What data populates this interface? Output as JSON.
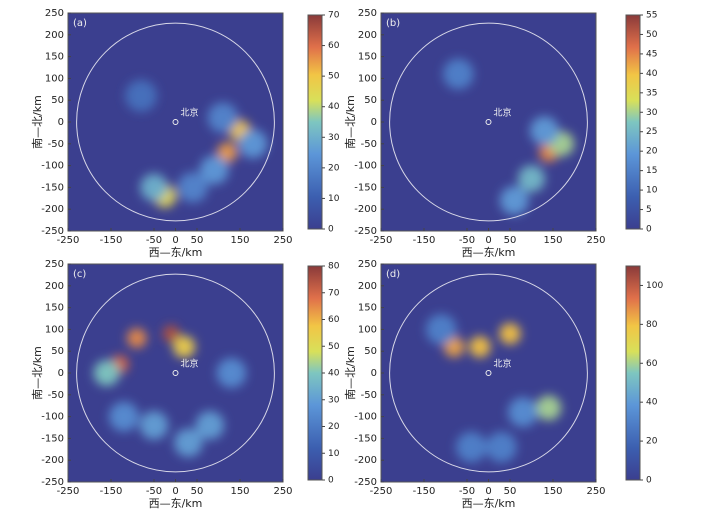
{
  "chart_data": [
    {
      "type": "heatmap",
      "label": "(a)",
      "xlabel": "西—东/km",
      "ylabel": "南—北/km",
      "city": "北京",
      "xlim": [
        -250,
        250
      ],
      "ylim": [
        -250,
        250
      ],
      "xticks": [
        -250,
        -150,
        -50,
        0,
        50,
        150,
        250
      ],
      "yticks": [
        250,
        200,
        150,
        100,
        50,
        0,
        -50,
        -100,
        -150,
        -200,
        -250
      ],
      "clim": [
        0,
        70
      ],
      "cticks": [
        0,
        10,
        20,
        30,
        40,
        50,
        60,
        70
      ],
      "points": [
        {
          "x": 150,
          "y": -20,
          "value": 50
        },
        {
          "x": 120,
          "y": -70,
          "value": 55
        },
        {
          "x": -25,
          "y": -170,
          "value": 45
        },
        {
          "x": -50,
          "y": -150,
          "value": 30
        },
        {
          "x": 90,
          "y": -110,
          "value": 25
        },
        {
          "x": 110,
          "y": 10,
          "value": 20
        },
        {
          "x": 180,
          "y": -50,
          "value": 25
        },
        {
          "x": -80,
          "y": 60,
          "value": 15
        },
        {
          "x": 40,
          "y": -150,
          "value": 20
        }
      ]
    },
    {
      "type": "heatmap",
      "label": "(b)",
      "xlabel": "西—东/km",
      "ylabel": "南—北/km",
      "city": "北京",
      "xlim": [
        -250,
        250
      ],
      "ylim": [
        -250,
        250
      ],
      "xticks": [
        -250,
        -150,
        -50,
        0,
        50,
        150,
        250
      ],
      "yticks": [
        250,
        200,
        150,
        100,
        50,
        0,
        -50,
        -100,
        -150,
        -200,
        -250
      ],
      "clim": [
        0,
        55
      ],
      "cticks": [
        0,
        5,
        10,
        15,
        20,
        25,
        30,
        35,
        40,
        45,
        50,
        55
      ],
      "points": [
        {
          "x": 140,
          "y": -70,
          "value": 45
        },
        {
          "x": 170,
          "y": -50,
          "value": 30
        },
        {
          "x": 100,
          "y": -130,
          "value": 25
        },
        {
          "x": 60,
          "y": -180,
          "value": 20
        },
        {
          "x": -70,
          "y": 110,
          "value": 15
        },
        {
          "x": 130,
          "y": -20,
          "value": 20
        }
      ]
    },
    {
      "type": "heatmap",
      "label": "(c)",
      "xlabel": "西—东/km",
      "ylabel": "南—北/km",
      "city": "北京",
      "xlim": [
        -250,
        250
      ],
      "ylim": [
        -250,
        250
      ],
      "xticks": [
        -250,
        -150,
        -50,
        0,
        50,
        150,
        250
      ],
      "yticks": [
        250,
        200,
        150,
        100,
        50,
        0,
        -50,
        -100,
        -150,
        -200,
        -250
      ],
      "clim": [
        0,
        80
      ],
      "cticks": [
        0,
        10,
        20,
        30,
        40,
        50,
        60,
        70,
        80
      ],
      "points": [
        {
          "x": -90,
          "y": 80,
          "value": 65
        },
        {
          "x": -10,
          "y": 90,
          "value": 75
        },
        {
          "x": -130,
          "y": 20,
          "value": 70
        },
        {
          "x": 20,
          "y": 60,
          "value": 55
        },
        {
          "x": -160,
          "y": 0,
          "value": 40
        },
        {
          "x": -50,
          "y": -120,
          "value": 30
        },
        {
          "x": 30,
          "y": -160,
          "value": 30
        },
        {
          "x": 80,
          "y": -120,
          "value": 30
        },
        {
          "x": -120,
          "y": -100,
          "value": 25
        },
        {
          "x": 130,
          "y": 0,
          "value": 25
        }
      ]
    },
    {
      "type": "heatmap",
      "label": "(d)",
      "xlabel": "西—东/km",
      "ylabel": "南—北/km",
      "city": "北京",
      "xlim": [
        -250,
        250
      ],
      "ylim": [
        -250,
        250
      ],
      "xticks": [
        -250,
        -150,
        -50,
        0,
        50,
        150,
        250
      ],
      "yticks": [
        250,
        200,
        150,
        100,
        50,
        0,
        -50,
        -100,
        -150,
        -200,
        -250
      ],
      "clim": [
        0,
        110
      ],
      "cticks": [
        0,
        20,
        40,
        60,
        80,
        100
      ],
      "points": [
        {
          "x": -80,
          "y": 60,
          "value": 85
        },
        {
          "x": -20,
          "y": 60,
          "value": 80
        },
        {
          "x": 50,
          "y": 90,
          "value": 80
        },
        {
          "x": 140,
          "y": -80,
          "value": 60
        },
        {
          "x": 80,
          "y": -90,
          "value": 35
        },
        {
          "x": 30,
          "y": -170,
          "value": 30
        },
        {
          "x": -40,
          "y": -170,
          "value": 30
        },
        {
          "x": -110,
          "y": 100,
          "value": 30
        }
      ]
    }
  ]
}
